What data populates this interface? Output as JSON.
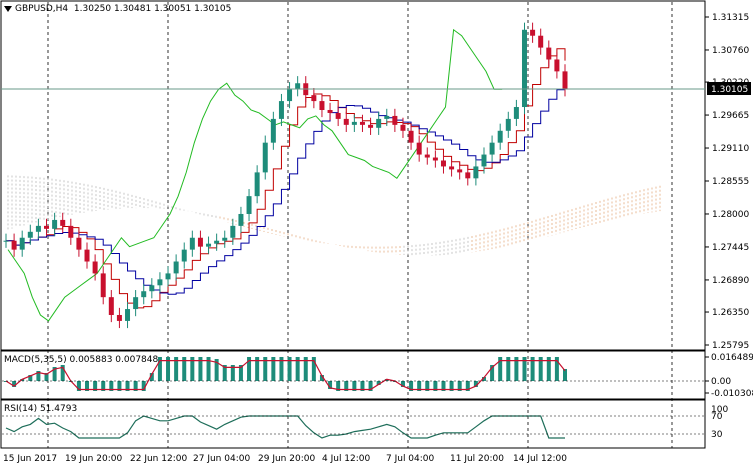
{
  "header": {
    "symbol": "GBPUSD,H4",
    "ohlc": "1.30250 1.30481 1.30051 1.30105"
  },
  "price_axis": {
    "ticks": [
      "1.31315",
      "1.30760",
      "1.30220",
      "1.29665",
      "1.29110",
      "1.28555",
      "1.28000",
      "1.27445",
      "1.26890",
      "1.26350",
      "1.25795"
    ],
    "current": "1.30105"
  },
  "macd": {
    "label": "MACD(5,35,5) 0.005883 0.007848",
    "ticks": [
      "0.016489",
      "0.00",
      "-0.010308"
    ]
  },
  "rsi": {
    "label": "RSI(14) 51.4793",
    "ticks": [
      "100",
      "70",
      "30",
      "0"
    ]
  },
  "time_axis": [
    "15 Jun 2017",
    "19 Jun 20:00",
    "22 Jun 12:00",
    "27 Jun 04:00",
    "29 Jun 20:00",
    "4 Jul 12:00",
    "7 Jul 04:00",
    "11 Jul 20:00",
    "14 Jul 12:00"
  ],
  "colors": {
    "bull": "#1e8c7a",
    "bear": "#c8102e",
    "kijun": "#c00000",
    "tenkan": "#0000a0",
    "chikou": "#22bb22",
    "cloud_a": "#b0b0b0",
    "cloud_b": "#e0a070",
    "macd_hist": "#1e8c7a",
    "macd_signal": "#c8102e",
    "rsi_line": "#1e6e5a"
  },
  "chart_data": {
    "type": "candlestick",
    "symbol": "GBPUSD",
    "timeframe": "H4",
    "ylim": [
      1.25795,
      1.31315
    ],
    "current_price": 1.30105,
    "series_close_approx": [
      1.2755,
      1.274,
      1.276,
      1.277,
      1.278,
      1.2775,
      1.279,
      1.278,
      1.276,
      1.274,
      1.272,
      1.27,
      1.266,
      1.263,
      1.262,
      1.264,
      1.266,
      1.267,
      1.268,
      1.269,
      1.27,
      1.272,
      1.274,
      1.276,
      1.2745,
      1.275,
      1.2755,
      1.276,
      1.278,
      1.28,
      1.283,
      1.287,
      1.292,
      1.296,
      1.299,
      1.301,
      1.302,
      1.3,
      1.299,
      1.2975,
      1.297,
      1.296,
      1.295,
      1.2955,
      1.295,
      1.2945,
      1.296,
      1.2965,
      1.295,
      1.294,
      1.292,
      1.29,
      1.2895,
      1.289,
      1.288,
      1.2875,
      1.287,
      1.286,
      1.288,
      1.29,
      1.292,
      1.294,
      1.296,
      1.298,
      1.311,
      1.31,
      1.308,
      1.306,
      1.304,
      1.301
    ]
  }
}
